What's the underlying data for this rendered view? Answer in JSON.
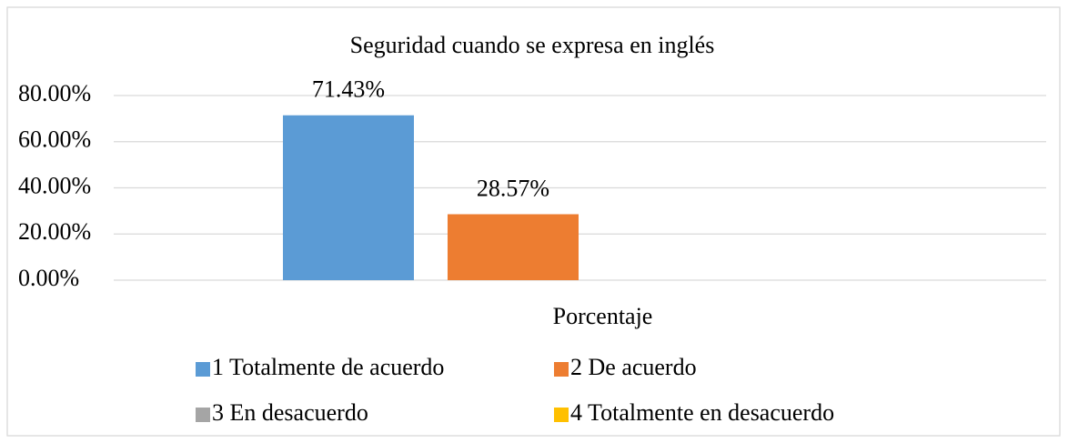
{
  "chart_data": {
    "type": "bar",
    "title": "Seguridad cuando se expresa en inglés",
    "categories": [
      "Porcentaje"
    ],
    "series": [
      {
        "name": "1 Totalmente de acuerdo",
        "color": "#5b9bd5",
        "values": [
          71.43
        ],
        "value_labels": [
          "71.43%"
        ]
      },
      {
        "name": "2 De acuerdo",
        "color": "#ed7d31",
        "values": [
          28.57
        ],
        "value_labels": [
          "28.57%"
        ]
      },
      {
        "name": "3 En desacuerdo",
        "color": "#a5a5a5",
        "values": [
          0
        ],
        "value_labels": [
          null
        ]
      },
      {
        "name": "4 Totalmente en desacuerdo",
        "color": "#ffc000",
        "values": [
          0
        ],
        "value_labels": [
          null
        ]
      }
    ],
    "ylim": [
      0,
      80
    ],
    "yticks": [
      {
        "value": 0,
        "label": "0.00%"
      },
      {
        "value": 20,
        "label": "20.00%"
      },
      {
        "value": 40,
        "label": "40.00%"
      },
      {
        "value": 60,
        "label": "60.00%"
      },
      {
        "value": 80,
        "label": "80.00%"
      }
    ],
    "grid": true,
    "legend": "bottom"
  }
}
